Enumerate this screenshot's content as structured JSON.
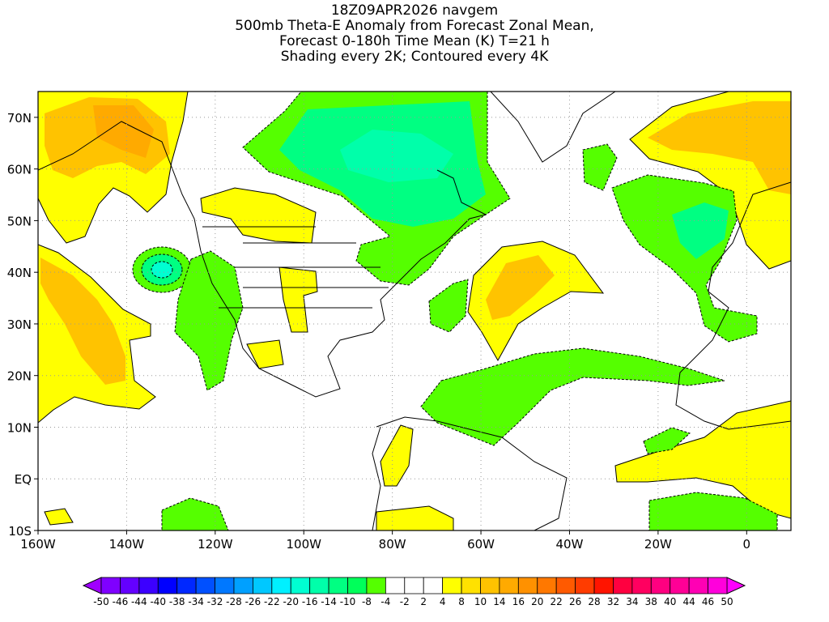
{
  "title": {
    "line1": "18Z09APR2026 navgem",
    "line2": "500mb Theta-E Anomaly from Forecast Zonal Mean,",
    "line3": "Forecast 0-180h Time Mean (K) T=21 h",
    "line4": "Shading every 2K; Contoured every 4K"
  },
  "axes": {
    "lon_ticks": [
      "160W",
      "140W",
      "120W",
      "100W",
      "80W",
      "60W",
      "40W",
      "20W",
      "0"
    ],
    "lat_ticks": [
      "10S",
      "EQ",
      "10N",
      "20N",
      "30N",
      "40N",
      "50N",
      "60N",
      "70N"
    ],
    "lon_range": [
      -160,
      10
    ],
    "lat_range": [
      -10,
      75
    ]
  },
  "colorbar": {
    "labels": [
      "-50",
      "-46",
      "-44",
      "-40",
      "-38",
      "-34",
      "-32",
      "-28",
      "-26",
      "-22",
      "-20",
      "-16",
      "-14",
      "-10",
      "-8",
      "-4",
      "-2",
      "2",
      "4",
      "8",
      "10",
      "14",
      "16",
      "20",
      "22",
      "26",
      "28",
      "32",
      "34",
      "38",
      "40",
      "44",
      "46",
      "50"
    ],
    "low_triangle_color": "#a000ff",
    "high_triangle_color": "#ff00ff",
    "box_colors": [
      "#7f00ff",
      "#6400ff",
      "#3c00ff",
      "#0000ff",
      "#0028ff",
      "#0050ff",
      "#0078ff",
      "#00a0ff",
      "#00c8ff",
      "#00f0ff",
      "#00ffd2",
      "#00ffaa",
      "#00ff82",
      "#00ff5a",
      "#55ff00",
      "#ffffff",
      "#ffffff",
      "#ffffff",
      "#ffff00",
      "#ffe100",
      "#ffc300",
      "#ffaa00",
      "#ff9100",
      "#ff7800",
      "#ff5a00",
      "#ff3c00",
      "#ff1400",
      "#ff0040",
      "#ff0060",
      "#ff0080",
      "#ff0096",
      "#ff00b4",
      "#ff00dc"
    ]
  }
}
